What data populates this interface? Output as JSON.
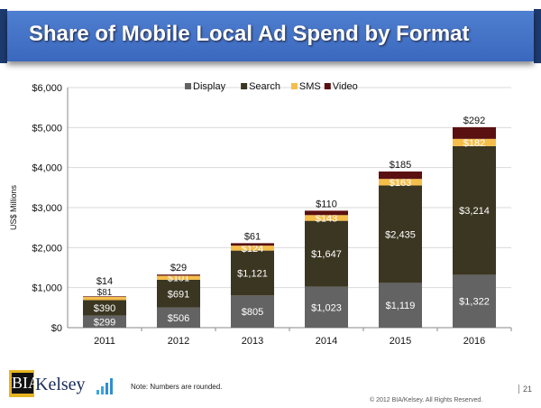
{
  "header": {
    "title": "Share of Mobile Local Ad Spend by Format"
  },
  "footer": {
    "note": "Note: Numbers are rounded.",
    "page": "21",
    "copyright": "© 2012 BIA/Kelsey. All Rights Reserved.",
    "logo_text": "BIA Kelsey"
  },
  "chart_data": {
    "type": "bar",
    "stacked": true,
    "categories": [
      "2011",
      "2012",
      "2013",
      "2014",
      "2015",
      "2016"
    ],
    "ylabel": "US$ Millions",
    "ylim": [
      0,
      6000
    ],
    "yticks": [
      "$0",
      "$1,000",
      "$2,000",
      "$3,000",
      "$4,000",
      "$5,000",
      "$6,000"
    ],
    "grid": true,
    "legend": "top",
    "series": [
      {
        "name": "Display",
        "color": "#636363",
        "values": [
          299,
          506,
          805,
          1023,
          1119,
          1322
        ],
        "labels": [
          "$299",
          "$506",
          "$805",
          "$1,023",
          "$1,119",
          "$1,322"
        ]
      },
      {
        "name": "Search",
        "color": "#3b3621",
        "values": [
          390,
          691,
          1121,
          1647,
          2435,
          3214
        ],
        "labels": [
          "$390",
          "$691",
          "$1,121",
          "$1,647",
          "$2,435",
          "$3,214"
        ]
      },
      {
        "name": "SMS",
        "color": "#f5be4a",
        "values": [
          81,
          101,
          124,
          143,
          163,
          182
        ],
        "labels": [
          "$81",
          "$101",
          "$124",
          "$143",
          "$163",
          "$182"
        ]
      },
      {
        "name": "Video",
        "color": "#5a1010",
        "values": [
          14,
          29,
          61,
          110,
          185,
          292
        ],
        "labels": [
          "$14",
          "$29",
          "$61",
          "$110",
          "$185",
          "$292"
        ]
      }
    ]
  }
}
